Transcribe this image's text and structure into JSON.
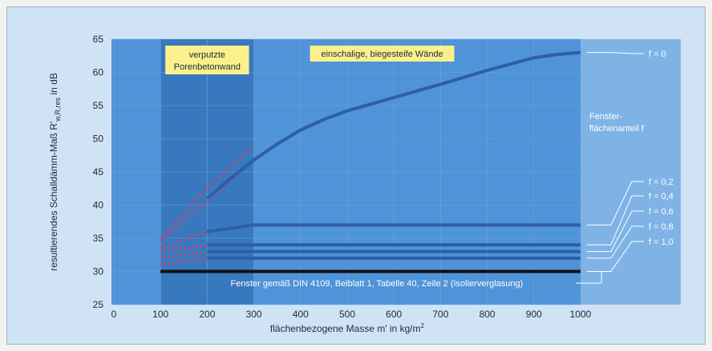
{
  "chart_data": {
    "type": "line",
    "xlabel": "flächenbezogene Masse m' in kg/m",
    "xlabel_sup": "2",
    "ylabel_main": "resultierendes Schalldämm-Maß R'",
    "ylabel_sub": "w,R,res",
    "ylabel_unit": " in dB",
    "x_ticks": [
      0,
      100,
      200,
      300,
      400,
      500,
      600,
      700,
      800,
      900,
      1000
    ],
    "y_ticks": [
      25,
      30,
      35,
      40,
      45,
      50,
      55,
      60,
      65
    ],
    "xlim": [
      0,
      1000
    ],
    "ylim": [
      25,
      65
    ],
    "regions": [
      {
        "label_lines": [
          "verputzte",
          "Porenbetonwand"
        ],
        "x_range": [
          100,
          300
        ]
      },
      {
        "label_lines": [
          "einschalige, biegesteife Wände"
        ],
        "x_range": [
          300,
          1000
        ]
      }
    ],
    "series": [
      {
        "name": "f = 0",
        "x": [
          200,
          250,
          300,
          350,
          400,
          450,
          500,
          600,
          700,
          800,
          900,
          950,
          1000
        ],
        "y": [
          41,
          44,
          46.8,
          49.2,
          51.3,
          52.9,
          54.2,
          56.2,
          58.2,
          60.3,
          62.2,
          62.7,
          63
        ]
      },
      {
        "name": "f = 0,2",
        "x": [
          200,
          300,
          1000
        ],
        "y": [
          36,
          37,
          37
        ]
      },
      {
        "name": "f = 0,4",
        "x": [
          200,
          300,
          1000
        ],
        "y": [
          34,
          34,
          34
        ]
      },
      {
        "name": "f = 0,6",
        "x": [
          200,
          300,
          1000
        ],
        "y": [
          33,
          33,
          33
        ]
      },
      {
        "name": "f = 0,8",
        "x": [
          200,
          300,
          1000
        ],
        "y": [
          32,
          32,
          32
        ]
      },
      {
        "name": "f = 1,0",
        "x": [
          100,
          1000
        ],
        "y": [
          30,
          30
        ]
      }
    ],
    "dotted_series": [
      {
        "x": [
          100,
          200,
          300
        ],
        "y": [
          35,
          42.5,
          49
        ]
      },
      {
        "x": [
          100,
          200,
          300
        ],
        "y": [
          34.5,
          40.5,
          47
        ]
      },
      {
        "x": [
          100,
          200,
          300
        ],
        "y": [
          33.5,
          36,
          37
        ]
      },
      {
        "x": [
          100,
          200,
          300
        ],
        "y": [
          33,
          34,
          34
        ]
      },
      {
        "x": [
          100,
          200,
          300
        ],
        "y": [
          32,
          33,
          33
        ]
      },
      {
        "x": [
          100,
          200,
          300
        ],
        "y": [
          31,
          32,
          32
        ]
      }
    ],
    "annotations": {
      "fenster_title": [
        "Fenster-",
        "flächenanteil f"
      ],
      "bottom_note": "Fenster gemäß DIN 4109, Beiblatt 1, Tabelle 40, Zeile 2 (Isolierverglasung)"
    },
    "colors": {
      "background": "#cfe3f5",
      "plot": "#4f93d8",
      "region_dark": "#3878be",
      "label_box": "#fbf08c",
      "line": "#2e5ea8",
      "line_f10": "#111111",
      "dotted": "#c9446e"
    }
  }
}
